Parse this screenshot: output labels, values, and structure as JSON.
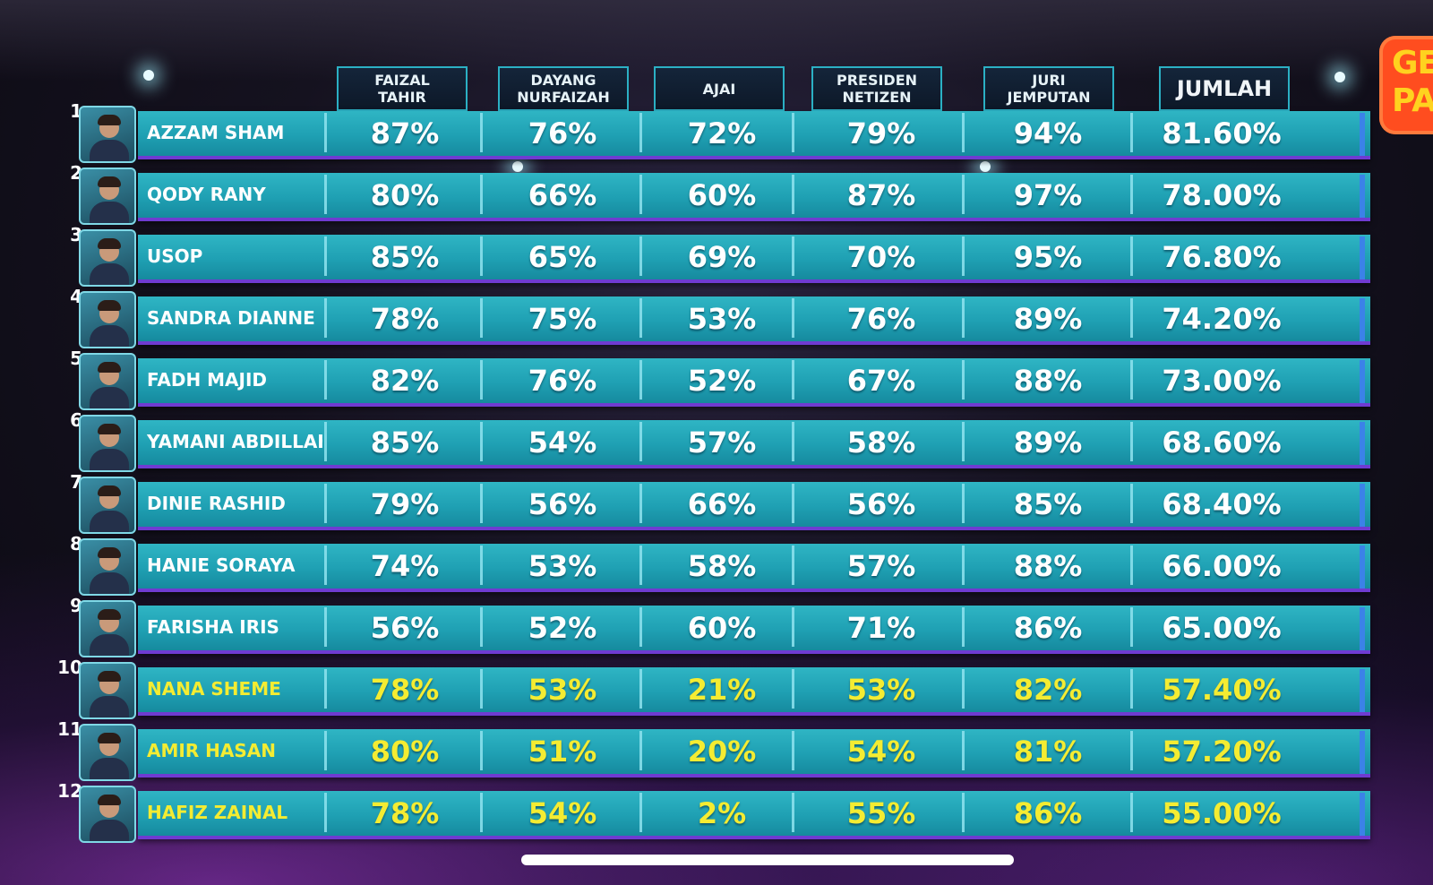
{
  "logo_text": [
    "GE",
    "PA"
  ],
  "columns": [
    {
      "label": "FAIZAL\nTAHIR"
    },
    {
      "label": "DAYANG\nNURFAIZAH"
    },
    {
      "label": "AJAI"
    },
    {
      "label": "PRESIDEN\nNETIZEN"
    },
    {
      "label": "JURI\nJEMPUTAN"
    },
    {
      "label": "JUMLAH"
    }
  ],
  "rows": [
    {
      "rank": "1",
      "name": "AZZAM SHAM",
      "scores": [
        "87%",
        "76%",
        "72%",
        "79%",
        "94%",
        "81.60%"
      ],
      "highlight": false
    },
    {
      "rank": "2",
      "name": "QODY RANY",
      "scores": [
        "80%",
        "66%",
        "60%",
        "87%",
        "97%",
        "78.00%"
      ],
      "highlight": false
    },
    {
      "rank": "3",
      "name": "USOP",
      "scores": [
        "85%",
        "65%",
        "69%",
        "70%",
        "95%",
        "76.80%"
      ],
      "highlight": false
    },
    {
      "rank": "4",
      "name": "SANDRA DIANNE",
      "scores": [
        "78%",
        "75%",
        "53%",
        "76%",
        "89%",
        "74.20%"
      ],
      "highlight": false
    },
    {
      "rank": "5",
      "name": "FADH MAJID",
      "scores": [
        "82%",
        "76%",
        "52%",
        "67%",
        "88%",
        "73.00%"
      ],
      "highlight": false
    },
    {
      "rank": "6",
      "name": "YAMANI ABDILLAH",
      "scores": [
        "85%",
        "54%",
        "57%",
        "58%",
        "89%",
        "68.60%"
      ],
      "highlight": false
    },
    {
      "rank": "7",
      "name": "DINIE RASHID",
      "scores": [
        "79%",
        "56%",
        "66%",
        "56%",
        "85%",
        "68.40%"
      ],
      "highlight": false
    },
    {
      "rank": "8",
      "name": "HANIE SORAYA",
      "scores": [
        "74%",
        "53%",
        "58%",
        "57%",
        "88%",
        "66.00%"
      ],
      "highlight": false
    },
    {
      "rank": "9",
      "name": "FARISHA IRIS",
      "scores": [
        "56%",
        "52%",
        "60%",
        "71%",
        "86%",
        "65.00%"
      ],
      "highlight": false
    },
    {
      "rank": "10",
      "name": "NANA SHEME",
      "scores": [
        "78%",
        "53%",
        "21%",
        "53%",
        "82%",
        "57.40%"
      ],
      "highlight": true
    },
    {
      "rank": "11",
      "name": "AMIR HASAN",
      "scores": [
        "80%",
        "51%",
        "20%",
        "54%",
        "81%",
        "57.20%"
      ],
      "highlight": true
    },
    {
      "rank": "12",
      "name": "HAFIZ ZAINAL",
      "scores": [
        "78%",
        "54%",
        "2%",
        "55%",
        "86%",
        "55.00%"
      ],
      "highlight": true
    }
  ],
  "colors": {
    "bar": "#1fa0b3",
    "highlight_text": "#f4ec32",
    "normal_text": "#ffffff",
    "header_border": "#2bb0c4",
    "logo_bg": "#ff4d1f",
    "logo_text": "#ffd21f"
  }
}
